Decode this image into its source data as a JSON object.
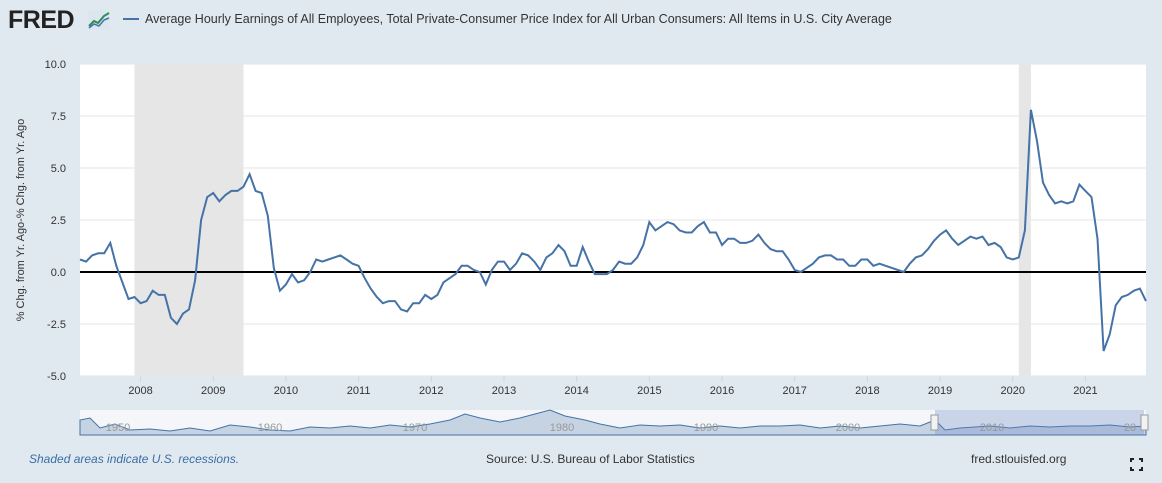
{
  "header": {
    "logo_text": "FRED",
    "legend_label": "Average Hourly Earnings of All Employees, Total Private-Consumer Price Index for All Urban Consumers: All Items in U.S. City Average"
  },
  "footer": {
    "recession_note": "Shaded areas indicate U.S. recessions.",
    "source": "Source: U.S. Bureau of Labor Statistics",
    "site": "fred.stlouisfed.org"
  },
  "navigator": {
    "tick_labels": [
      "1950",
      "1960",
      "1970",
      "1980",
      "1990",
      "2000",
      "2010",
      "20"
    ]
  },
  "colors": {
    "line": "#4572a7",
    "recession": "#e6e6e6",
    "background": "#e1e9f0"
  },
  "chart_data": {
    "type": "line",
    "title": "",
    "ylabel": "% Chg. from Yr. Ago-% Chg. from Yr. Ago",
    "xlabel": "",
    "ylim": [
      -5.0,
      10.0
    ],
    "yticks": [
      "10.0",
      "7.5",
      "5.0",
      "2.5",
      "0.0",
      "-2.5",
      "-5.0"
    ],
    "xlim": [
      "2007-03",
      "2021-11"
    ],
    "xticks": [
      "2008",
      "2009",
      "2010",
      "2011",
      "2012",
      "2013",
      "2014",
      "2015",
      "2016",
      "2017",
      "2018",
      "2019",
      "2020",
      "2021"
    ],
    "recessions": [
      [
        "2007-12",
        "2009-06"
      ],
      [
        "2020-02",
        "2020-04"
      ]
    ],
    "series": [
      {
        "values": [
          [
            "2007-03",
            0.6
          ],
          [
            "2007-04",
            0.5
          ],
          [
            "2007-05",
            0.8
          ],
          [
            "2007-06",
            0.9
          ],
          [
            "2007-07",
            0.9
          ],
          [
            "2007-08",
            1.4
          ],
          [
            "2007-09",
            0.3
          ],
          [
            "2007-10",
            -0.5
          ],
          [
            "2007-11",
            -1.3
          ],
          [
            "2007-12",
            -1.2
          ],
          [
            "2008-01",
            -1.5
          ],
          [
            "2008-02",
            -1.4
          ],
          [
            "2008-03",
            -0.9
          ],
          [
            "2008-04",
            -1.1
          ],
          [
            "2008-05",
            -1.1
          ],
          [
            "2008-06",
            -2.2
          ],
          [
            "2008-07",
            -2.5
          ],
          [
            "2008-08",
            -2.0
          ],
          [
            "2008-09",
            -1.8
          ],
          [
            "2008-10",
            -0.4
          ],
          [
            "2008-11",
            2.5
          ],
          [
            "2008-12",
            3.6
          ],
          [
            "2009-01",
            3.8
          ],
          [
            "2009-02",
            3.4
          ],
          [
            "2009-03",
            3.7
          ],
          [
            "2009-04",
            3.9
          ],
          [
            "2009-05",
            3.9
          ],
          [
            "2009-06",
            4.1
          ],
          [
            "2009-07",
            4.7
          ],
          [
            "2009-08",
            3.9
          ],
          [
            "2009-09",
            3.8
          ],
          [
            "2009-10",
            2.7
          ],
          [
            "2009-11",
            0.2
          ],
          [
            "2009-12",
            -0.9
          ],
          [
            "2010-01",
            -0.6
          ],
          [
            "2010-02",
            -0.1
          ],
          [
            "2010-03",
            -0.5
          ],
          [
            "2010-04",
            -0.4
          ],
          [
            "2010-05",
            0.0
          ],
          [
            "2010-06",
            0.6
          ],
          [
            "2010-07",
            0.5
          ],
          [
            "2010-08",
            0.6
          ],
          [
            "2010-09",
            0.7
          ],
          [
            "2010-10",
            0.8
          ],
          [
            "2010-11",
            0.6
          ],
          [
            "2010-12",
            0.4
          ],
          [
            "2011-01",
            0.3
          ],
          [
            "2011-02",
            -0.3
          ],
          [
            "2011-03",
            -0.8
          ],
          [
            "2011-04",
            -1.2
          ],
          [
            "2011-05",
            -1.5
          ],
          [
            "2011-06",
            -1.4
          ],
          [
            "2011-07",
            -1.4
          ],
          [
            "2011-08",
            -1.8
          ],
          [
            "2011-09",
            -1.9
          ],
          [
            "2011-10",
            -1.5
          ],
          [
            "2011-11",
            -1.5
          ],
          [
            "2011-12",
            -1.1
          ],
          [
            "2012-01",
            -1.3
          ],
          [
            "2012-02",
            -1.1
          ],
          [
            "2012-03",
            -0.5
          ],
          [
            "2012-04",
            -0.3
          ],
          [
            "2012-05",
            -0.1
          ],
          [
            "2012-06",
            0.3
          ],
          [
            "2012-07",
            0.3
          ],
          [
            "2012-08",
            0.1
          ],
          [
            "2012-09",
            0.0
          ],
          [
            "2012-10",
            -0.6
          ],
          [
            "2012-11",
            0.1
          ],
          [
            "2012-12",
            0.5
          ],
          [
            "2013-01",
            0.5
          ],
          [
            "2013-02",
            0.1
          ],
          [
            "2013-03",
            0.4
          ],
          [
            "2013-04",
            0.9
          ],
          [
            "2013-05",
            0.8
          ],
          [
            "2013-06",
            0.5
          ],
          [
            "2013-07",
            0.1
          ],
          [
            "2013-08",
            0.7
          ],
          [
            "2013-09",
            0.9
          ],
          [
            "2013-10",
            1.3
          ],
          [
            "2013-11",
            1.0
          ],
          [
            "2013-12",
            0.3
          ],
          [
            "2014-01",
            0.3
          ],
          [
            "2014-02",
            1.2
          ],
          [
            "2014-03",
            0.5
          ],
          [
            "2014-04",
            -0.1
          ],
          [
            "2014-05",
            -0.1
          ],
          [
            "2014-06",
            -0.1
          ],
          [
            "2014-07",
            0.1
          ],
          [
            "2014-08",
            0.5
          ],
          [
            "2014-09",
            0.4
          ],
          [
            "2014-10",
            0.4
          ],
          [
            "2014-11",
            0.7
          ],
          [
            "2014-12",
            1.3
          ],
          [
            "2015-01",
            2.4
          ],
          [
            "2015-02",
            2.0
          ],
          [
            "2015-03",
            2.2
          ],
          [
            "2015-04",
            2.4
          ],
          [
            "2015-05",
            2.3
          ],
          [
            "2015-06",
            2.0
          ],
          [
            "2015-07",
            1.9
          ],
          [
            "2015-08",
            1.9
          ],
          [
            "2015-09",
            2.2
          ],
          [
            "2015-10",
            2.4
          ],
          [
            "2015-11",
            1.9
          ],
          [
            "2015-12",
            1.9
          ],
          [
            "2016-01",
            1.3
          ],
          [
            "2016-02",
            1.6
          ],
          [
            "2016-03",
            1.6
          ],
          [
            "2016-04",
            1.4
          ],
          [
            "2016-05",
            1.4
          ],
          [
            "2016-06",
            1.5
          ],
          [
            "2016-07",
            1.8
          ],
          [
            "2016-08",
            1.4
          ],
          [
            "2016-09",
            1.1
          ],
          [
            "2016-10",
            1.0
          ],
          [
            "2016-11",
            1.0
          ],
          [
            "2016-12",
            0.6
          ],
          [
            "2017-01",
            0.1
          ],
          [
            "2017-02",
            0.0
          ],
          [
            "2017-03",
            0.2
          ],
          [
            "2017-04",
            0.4
          ],
          [
            "2017-05",
            0.7
          ],
          [
            "2017-06",
            0.8
          ],
          [
            "2017-07",
            0.8
          ],
          [
            "2017-08",
            0.6
          ],
          [
            "2017-09",
            0.6
          ],
          [
            "2017-10",
            0.3
          ],
          [
            "2017-11",
            0.3
          ],
          [
            "2017-12",
            0.6
          ],
          [
            "2018-01",
            0.6
          ],
          [
            "2018-02",
            0.3
          ],
          [
            "2018-03",
            0.4
          ],
          [
            "2018-04",
            0.3
          ],
          [
            "2018-05",
            0.2
          ],
          [
            "2018-06",
            0.1
          ],
          [
            "2018-07",
            0.0
          ],
          [
            "2018-08",
            0.4
          ],
          [
            "2018-09",
            0.7
          ],
          [
            "2018-10",
            0.8
          ],
          [
            "2018-11",
            1.1
          ],
          [
            "2018-12",
            1.5
          ],
          [
            "2019-01",
            1.8
          ],
          [
            "2019-02",
            2.0
          ],
          [
            "2019-03",
            1.6
          ],
          [
            "2019-04",
            1.3
          ],
          [
            "2019-05",
            1.5
          ],
          [
            "2019-06",
            1.7
          ],
          [
            "2019-07",
            1.6
          ],
          [
            "2019-08",
            1.7
          ],
          [
            "2019-09",
            1.3
          ],
          [
            "2019-10",
            1.4
          ],
          [
            "2019-11",
            1.2
          ],
          [
            "2019-12",
            0.7
          ],
          [
            "2020-01",
            0.6
          ],
          [
            "2020-02",
            0.7
          ],
          [
            "2020-03",
            2.0
          ],
          [
            "2020-04",
            7.8
          ],
          [
            "2020-05",
            6.3
          ],
          [
            "2020-06",
            4.3
          ],
          [
            "2020-07",
            3.7
          ],
          [
            "2020-08",
            3.3
          ],
          [
            "2020-09",
            3.4
          ],
          [
            "2020-10",
            3.3
          ],
          [
            "2020-11",
            3.4
          ],
          [
            "2020-12",
            4.2
          ],
          [
            "2021-01",
            3.9
          ],
          [
            "2021-02",
            3.6
          ],
          [
            "2021-03",
            1.6
          ],
          [
            "2021-04",
            -3.8
          ],
          [
            "2021-05",
            -3.0
          ],
          [
            "2021-06",
            -1.6
          ],
          [
            "2021-07",
            -1.2
          ],
          [
            "2021-08",
            -1.1
          ],
          [
            "2021-09",
            -0.9
          ],
          [
            "2021-10",
            -0.8
          ],
          [
            "2021-11",
            -1.4
          ]
        ]
      }
    ]
  }
}
